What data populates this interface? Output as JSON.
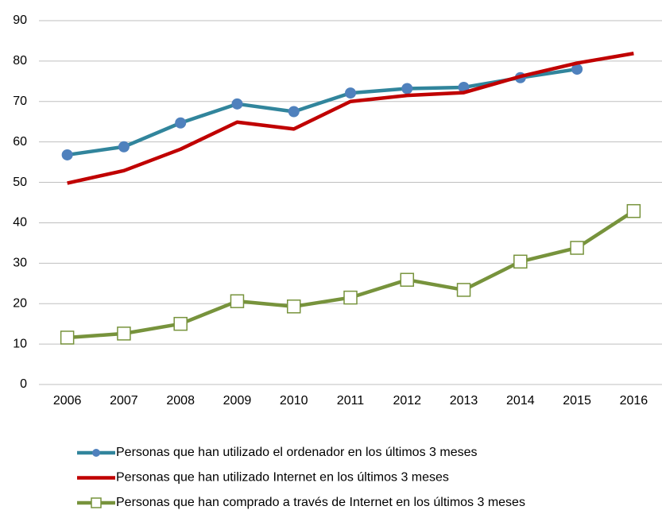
{
  "chart_data": {
    "type": "line",
    "categories": [
      "2006",
      "2007",
      "2008",
      "2009",
      "2010",
      "2011",
      "2012",
      "2013",
      "2014",
      "2015",
      "2016"
    ],
    "series": [
      {
        "name": "Personas que han utilizado el ordenador en los últimos 3 meses",
        "color": "#31859c",
        "marker": "circle",
        "marker_color": "#4f81bd",
        "values": [
          56.8,
          58.8,
          64.7,
          69.4,
          67.5,
          72.1,
          73.2,
          73.5,
          75.9,
          78.0,
          null
        ]
      },
      {
        "name": "Personas que han utilizado Internet en los últimos 3 meses",
        "color": "#c00000",
        "marker": "none",
        "values": [
          49.8,
          52.9,
          58.2,
          64.9,
          63.2,
          70.0,
          71.5,
          72.2,
          76.2,
          79.5,
          81.9
        ]
      },
      {
        "name": "Personas que han comprado a través de Internet en los últimos 3 meses",
        "color": "#77933c",
        "marker": "square",
        "marker_color": "#ffffff",
        "values": [
          11.6,
          12.6,
          15.0,
          20.6,
          19.3,
          21.5,
          25.9,
          23.4,
          30.4,
          33.8,
          42.9
        ]
      }
    ],
    "ylim": [
      0,
      90
    ],
    "yticks": [
      0,
      10,
      20,
      30,
      40,
      50,
      60,
      70,
      80,
      90
    ],
    "grid": true
  }
}
